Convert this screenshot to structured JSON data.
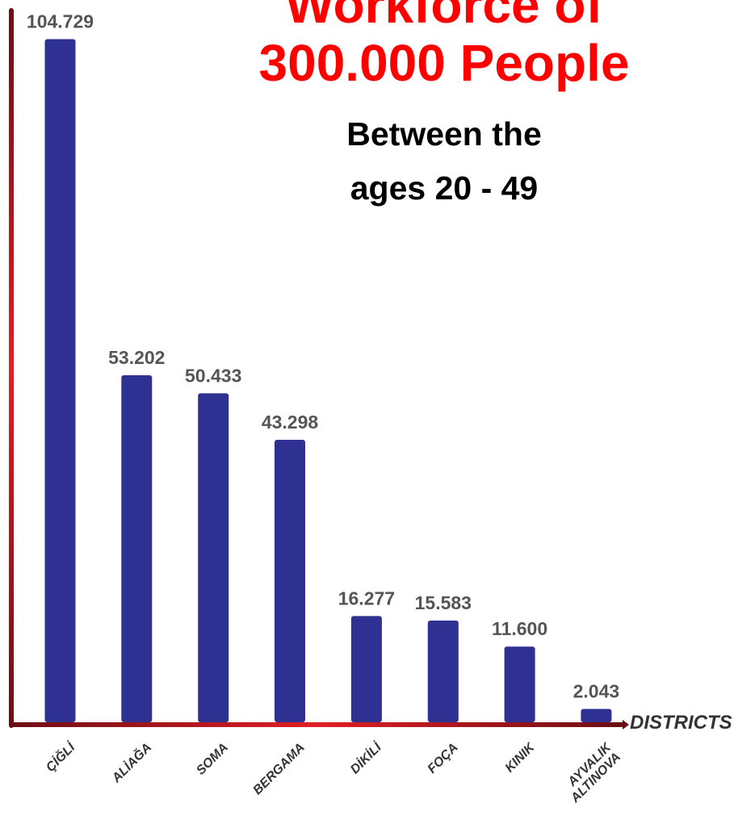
{
  "title_lines": [
    "Workforce of",
    "300.000 People"
  ],
  "subtitle_lines": [
    "Between the",
    "ages 20 - 49"
  ],
  "chart_data": {
    "type": "bar",
    "categories": [
      "ÇİĞLİ",
      "ALİAĞA",
      "SOMA",
      "BERGAMA",
      "DİKİLİ",
      "FOÇA",
      "KINIK",
      "AYVALIK ALTINOVA"
    ],
    "values": [
      104729,
      53202,
      50433,
      43298,
      16277,
      15583,
      11600,
      2043
    ],
    "value_labels": [
      "104.729",
      "53.202",
      "50.433",
      "43.298",
      "16.277",
      "15.583",
      "11.600",
      "2.043"
    ],
    "xlabel": "DISTRICTS",
    "ylabel": "",
    "ylim": [
      0,
      109000
    ],
    "grid": false,
    "bar_color": "#2e3192",
    "axis_color": "#b3121b",
    "title_color": "#ff0000"
  }
}
